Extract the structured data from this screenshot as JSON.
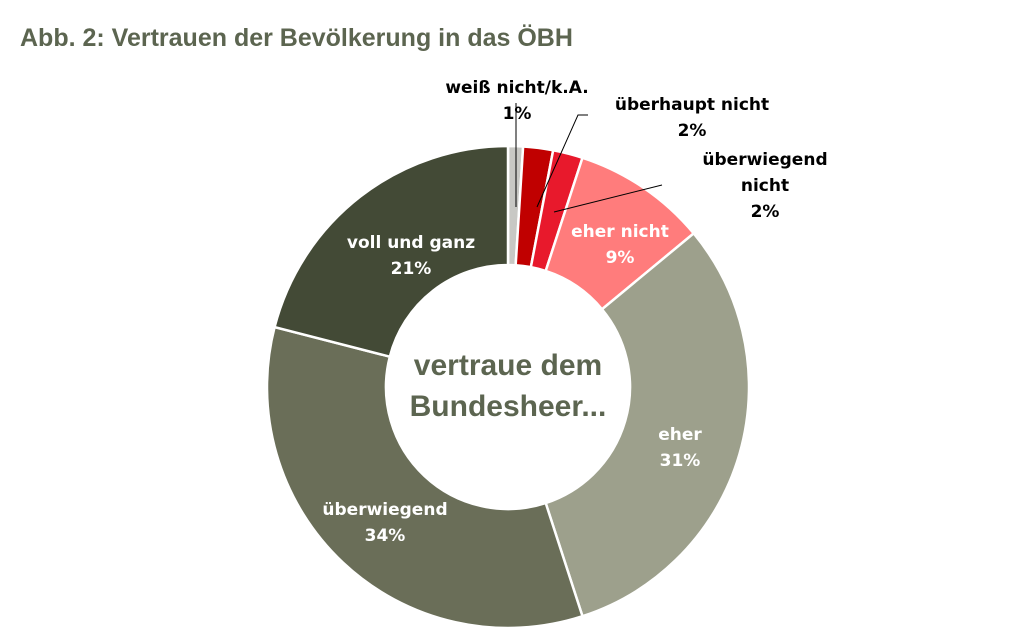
{
  "title": "Abb. 2: Vertrauen der Bevölkerung in das ÖBH",
  "chart_data": {
    "type": "donut",
    "title": "Abb. 2: Vertrauen der Bevölkerung in das ÖBH",
    "center_text": [
      "vertraue dem",
      "Bundesheer..."
    ],
    "unit": "%",
    "start_angle_deg": 0,
    "slices": [
      {
        "name": "weiß nicht/k.A.",
        "name_lines": [
          "weiß nicht/k.A."
        ],
        "value": 1,
        "label": "1%",
        "color": "#c8c8c4",
        "label_color": "#000000"
      },
      {
        "name": "überhaupt nicht",
        "name_lines": [
          "überhaupt nicht"
        ],
        "value": 2,
        "label": "2%",
        "color": "#c00000",
        "label_color": "#000000"
      },
      {
        "name": "überwiegend nicht",
        "name_lines": [
          "überwiegend",
          "nicht"
        ],
        "value": 2,
        "label": "2%",
        "color": "#e8192c",
        "label_color": "#000000"
      },
      {
        "name": "eher nicht",
        "name_lines": [
          "eher nicht"
        ],
        "value": 9,
        "label": "9%",
        "color": "#ff7c7c",
        "label_color": "#ffffff"
      },
      {
        "name": "eher",
        "name_lines": [
          "eher"
        ],
        "value": 31,
        "label": "31%",
        "color": "#9da08c",
        "label_color": "#ffffff"
      },
      {
        "name": "überwiegend",
        "name_lines": [
          "überwiegend"
        ],
        "value": 34,
        "label": "34%",
        "color": "#6a6e58",
        "label_color": "#ffffff"
      },
      {
        "name": "voll und ganz",
        "name_lines": [
          "voll und ganz"
        ],
        "value": 21,
        "label": "21%",
        "color": "#434a36",
        "label_color": "#ffffff"
      }
    ]
  }
}
